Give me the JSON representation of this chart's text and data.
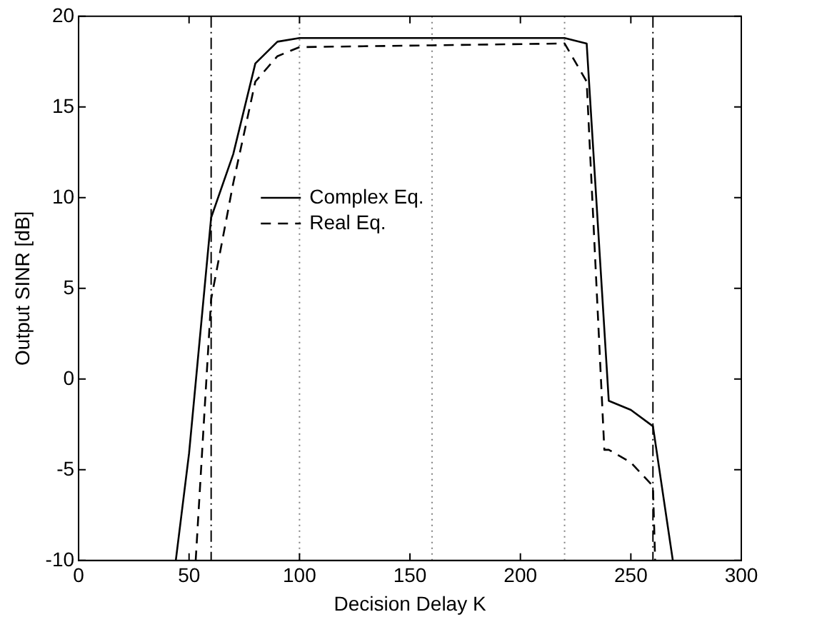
{
  "chart_data": {
    "type": "line",
    "xlabel": "Decision Delay K",
    "ylabel": "Output SINR [dB]",
    "xlim": [
      0,
      300
    ],
    "xticks": [
      0,
      50,
      100,
      150,
      200,
      250,
      300
    ],
    "ylim": [
      -10,
      20
    ],
    "yticks": [
      -10,
      -5,
      0,
      5,
      10,
      15,
      20
    ],
    "grid": false,
    "legend": "left",
    "marker": "none",
    "series": [
      {
        "name": "Complex Eq.",
        "color": "#000000",
        "line_style": "solid",
        "x": [
          44,
          50,
          60,
          70,
          80,
          90,
          100,
          160,
          220,
          230,
          240,
          250,
          260,
          269
        ],
        "values": [
          -10,
          -4.1,
          8.9,
          12.4,
          17.4,
          18.6,
          18.8,
          18.8,
          18.8,
          18.5,
          -1.2,
          -1.7,
          -2.6,
          -10
        ]
      },
      {
        "name": "Real Eq.",
        "color": "#000000",
        "line_style": "dashed",
        "x": [
          53,
          60,
          70,
          80,
          90,
          100,
          160,
          220,
          230,
          238,
          240,
          250,
          260,
          261
        ],
        "values": [
          -10,
          4.4,
          10.8,
          16.4,
          17.8,
          18.3,
          18.4,
          18.5,
          16.4,
          -3.9,
          -3.9,
          -4.6,
          -5.9,
          -10
        ]
      }
    ],
    "ref_lines": [
      {
        "axis": "x",
        "value": 60,
        "label": null,
        "line_style": "dashdot",
        "color": "#000000"
      },
      {
        "axis": "x",
        "value": 100,
        "label": null,
        "line_style": "dotted",
        "color": "#808080"
      },
      {
        "axis": "x",
        "value": 160,
        "label": null,
        "line_style": "dotted",
        "color": "#808080"
      },
      {
        "axis": "x",
        "value": 220,
        "label": null,
        "line_style": "dotted",
        "color": "#808080"
      },
      {
        "axis": "x",
        "value": 260,
        "label": null,
        "line_style": "dashdot",
        "color": "#000000"
      }
    ]
  }
}
